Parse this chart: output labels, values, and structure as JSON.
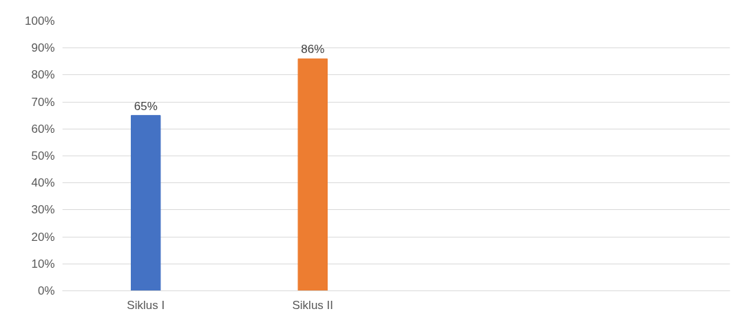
{
  "chart_data": {
    "type": "bar",
    "categories": [
      "Siklus I",
      "Siklus II",
      null,
      null
    ],
    "values": [
      65,
      86,
      null,
      null
    ],
    "colors": [
      "#4472c4",
      "#ed7d31",
      "#4472c4",
      "#4472c4"
    ],
    "value_labels": [
      "65%",
      "86%",
      null,
      null
    ],
    "ylim": [
      0,
      100
    ],
    "yticks": [
      {
        "value": 0,
        "label": "0%"
      },
      {
        "value": 10,
        "label": "10%"
      },
      {
        "value": 20,
        "label": "20%"
      },
      {
        "value": 30,
        "label": "30%"
      },
      {
        "value": 40,
        "label": "40%"
      },
      {
        "value": 50,
        "label": "50%"
      },
      {
        "value": 60,
        "label": "60%"
      },
      {
        "value": 70,
        "label": "70%"
      },
      {
        "value": 80,
        "label": "80%"
      },
      {
        "value": 90,
        "label": "90%"
      },
      {
        "value": 100,
        "label": "100%"
      }
    ],
    "grid": "y"
  }
}
